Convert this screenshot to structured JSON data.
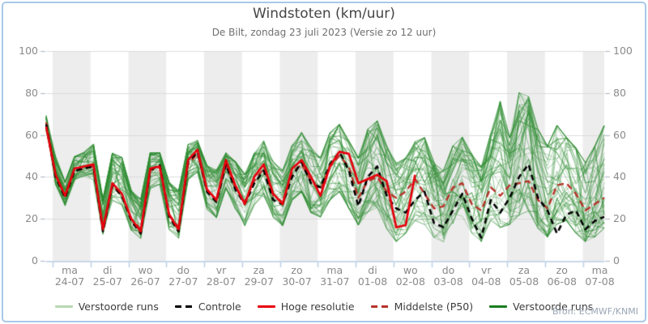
{
  "chart_data": {
    "type": "line",
    "title": "Windstoten (km/uur)",
    "subtitle": "De Bilt, zondag 23 juli 2023 (Versie zo 12 uur)",
    "source": "Bron: ECMWF/KNMI",
    "y_axis": {
      "ticks": [
        0,
        20,
        40,
        60,
        80,
        100
      ],
      "range": [
        0,
        100
      ],
      "sides": "both"
    },
    "x_axis": {
      "points_per_day": 4,
      "days": [
        {
          "weekday": "ma",
          "date": "24-07"
        },
        {
          "weekday": "di",
          "date": "25-07"
        },
        {
          "weekday": "wo",
          "date": "26-07"
        },
        {
          "weekday": "do",
          "date": "27-07"
        },
        {
          "weekday": "vr",
          "date": "28-07"
        },
        {
          "weekday": "za",
          "date": "29-07"
        },
        {
          "weekday": "zo",
          "date": "30-07"
        },
        {
          "weekday": "ma",
          "date": "31-07"
        },
        {
          "weekday": "di",
          "date": "01-08"
        },
        {
          "weekday": "wo",
          "date": "02-08"
        },
        {
          "weekday": "do",
          "date": "03-08"
        },
        {
          "weekday": "vr",
          "date": "04-08"
        },
        {
          "weekday": "za",
          "date": "05-08"
        },
        {
          "weekday": "zo",
          "date": "06-08"
        },
        {
          "weekday": "ma",
          "date": "07-08"
        }
      ]
    },
    "legend": [
      {
        "label": "Verstoorde runs",
        "swatch": "solid",
        "color": "#b7d9b0"
      },
      {
        "label": "Controle",
        "swatch": "dashed",
        "color": "#000000"
      },
      {
        "label": "Hoge resolutie",
        "swatch": "solid",
        "color": "#e8000d"
      },
      {
        "label": "Middelste (P50)",
        "swatch": "dashed",
        "color": "#b73229"
      },
      {
        "label": "Verstoorde runs",
        "swatch": "solid",
        "color": "#187d20"
      }
    ],
    "series": {
      "ensemble": {
        "name": "Verstoorde runs",
        "member_count": 50,
        "color_rgb": [
          45,
          140,
          49
        ],
        "envelope_low": [
          62,
          36,
          26,
          38,
          40,
          38,
          12,
          28,
          26,
          14,
          10,
          34,
          36,
          14,
          10,
          38,
          42,
          24,
          20,
          34,
          24,
          16,
          26,
          30,
          20,
          16,
          28,
          32,
          22,
          20,
          28,
          32,
          24,
          16,
          22,
          24,
          14,
          8,
          12,
          18,
          16,
          10,
          8,
          16,
          20,
          12,
          8,
          18,
          14,
          16,
          20,
          22,
          14,
          10,
          16,
          18,
          12,
          8,
          10,
          14
        ],
        "envelope_high": [
          70,
          50,
          38,
          50,
          52,
          56,
          30,
          52,
          50,
          34,
          30,
          52,
          52,
          38,
          34,
          56,
          58,
          46,
          44,
          52,
          48,
          42,
          52,
          58,
          48,
          44,
          56,
          62,
          55,
          50,
          62,
          66,
          58,
          50,
          64,
          68,
          56,
          48,
          50,
          58,
          60,
          48,
          44,
          56,
          60,
          52,
          46,
          62,
          78,
          60,
          82,
          80,
          64,
          56,
          66,
          60,
          55,
          48,
          56,
          66
        ]
      },
      "controle": {
        "name": "Controle",
        "color": "#000000",
        "dash": true,
        "values": [
          65,
          40,
          30,
          43,
          44,
          45,
          14,
          36,
          31,
          19,
          13,
          43,
          46,
          21,
          14,
          47,
          52,
          33,
          28,
          46,
          34,
          27,
          37,
          43,
          29,
          27,
          40,
          47,
          37,
          35,
          46,
          52,
          43,
          26,
          40,
          45,
          31,
          25,
          23,
          29,
          33,
          18,
          16,
          24,
          32,
          20,
          11,
          29,
          23,
          30,
          40,
          46,
          30,
          24,
          13,
          22,
          24,
          15,
          19,
          21
        ]
      },
      "hoge_resolutie": {
        "name": "Hoge resolutie",
        "color": "#e8000d",
        "dash": false,
        "values": [
          64,
          41,
          31,
          44,
          45,
          46,
          15,
          37,
          32,
          20,
          14,
          44,
          45,
          22,
          15,
          48,
          53,
          34,
          29,
          48,
          36,
          27,
          40,
          46,
          32,
          27,
          44,
          48,
          40,
          31,
          45,
          52,
          51,
          37,
          39,
          41,
          38,
          16,
          17,
          41
        ]
      },
      "middelste_p50": {
        "name": "Middelste (P50)",
        "color": "#b73229",
        "dash": true,
        "values": [
          66,
          41,
          31,
          43,
          44,
          45,
          16,
          36,
          31,
          20,
          15,
          43,
          45,
          22,
          16,
          46,
          51,
          34,
          29,
          46,
          35,
          28,
          38,
          44,
          31,
          28,
          42,
          46,
          38,
          34,
          45,
          50,
          45,
          30,
          38,
          40,
          33,
          30,
          33,
          39,
          32,
          25,
          26,
          35,
          37,
          27,
          24,
          35,
          31,
          36,
          37,
          38,
          29,
          25,
          36,
          37,
          32,
          24,
          27,
          30
        ]
      }
    },
    "style": {
      "band_color": "#ededed",
      "grid_color": "#dcdcdc",
      "axis_line_color": "#c9d7ea",
      "tick_color": "#b9cfe8"
    }
  }
}
